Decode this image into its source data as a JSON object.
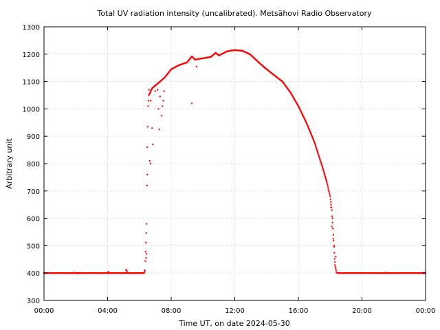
{
  "chart_data": {
    "type": "scatter",
    "title": "Total UV radiation intensity (uncalibrated). Metsähovi Radio Observatory",
    "xlabel": "Time UT, on date 2024-05-30",
    "ylabel": "Arbitrary unit",
    "xlim_hours": [
      0,
      24
    ],
    "ylim": [
      300,
      1300
    ],
    "grid": true,
    "x_ticks": [
      {
        "hour": 0,
        "label": "00:00"
      },
      {
        "hour": 4,
        "label": "04:00"
      },
      {
        "hour": 8,
        "label": "08:00"
      },
      {
        "hour": 12,
        "label": "12:00"
      },
      {
        "hour": 16,
        "label": "16:00"
      },
      {
        "hour": 20,
        "label": "20:00"
      },
      {
        "hour": 24,
        "label": "00:00"
      }
    ],
    "y_ticks": [
      {
        "value": 300,
        "label": "300"
      },
      {
        "value": 400,
        "label": "400"
      },
      {
        "value": 500,
        "label": "500"
      },
      {
        "value": 600,
        "label": "600"
      },
      {
        "value": 700,
        "label": "700"
      },
      {
        "value": 800,
        "label": "800"
      },
      {
        "value": 900,
        "label": "900"
      },
      {
        "value": 1000,
        "label": "1000"
      },
      {
        "value": 1100,
        "label": "1100"
      },
      {
        "value": 1200,
        "label": "1200"
      },
      {
        "value": 1300,
        "label": "1300"
      }
    ],
    "series": [
      {
        "color": "#ff0000",
        "curve_points": [
          [
            0.0,
            400
          ],
          [
            6.3,
            400
          ],
          [
            6.35,
            410
          ],
          [
            6.45,
            580
          ],
          [
            6.5,
            860
          ],
          [
            6.55,
            1010
          ],
          [
            6.6,
            1050
          ],
          [
            6.8,
            1075
          ],
          [
            7.2,
            1095
          ],
          [
            7.6,
            1115
          ],
          [
            8.0,
            1145
          ],
          [
            8.5,
            1160
          ],
          [
            9.0,
            1170
          ],
          [
            9.3,
            1192
          ],
          [
            9.5,
            1180
          ],
          [
            10.0,
            1185
          ],
          [
            10.5,
            1190
          ],
          [
            10.8,
            1205
          ],
          [
            11.0,
            1195
          ],
          [
            11.5,
            1210
          ],
          [
            12.0,
            1215
          ],
          [
            12.5,
            1212
          ],
          [
            13.0,
            1198
          ],
          [
            13.5,
            1170
          ],
          [
            14.0,
            1145
          ],
          [
            14.5,
            1122
          ],
          [
            15.0,
            1100
          ],
          [
            15.5,
            1060
          ],
          [
            16.0,
            1010
          ],
          [
            16.5,
            950
          ],
          [
            17.0,
            880
          ],
          [
            17.5,
            790
          ],
          [
            17.8,
            730
          ],
          [
            18.0,
            680
          ],
          [
            18.1,
            630
          ],
          [
            18.2,
            540
          ],
          [
            18.3,
            430
          ],
          [
            18.4,
            402
          ],
          [
            18.5,
            400
          ],
          [
            24.0,
            400
          ]
        ],
        "scattered_points": [
          [
            1.9,
            402
          ],
          [
            2.1,
            398
          ],
          [
            2.3,
            401
          ],
          [
            4.05,
            405
          ],
          [
            5.15,
            412
          ],
          [
            5.2,
            408
          ],
          [
            5.25,
            403
          ],
          [
            6.42,
            455
          ],
          [
            6.45,
            470
          ],
          [
            6.5,
            760
          ],
          [
            6.6,
            1070
          ],
          [
            6.65,
            810
          ],
          [
            6.7,
            800
          ],
          [
            6.72,
            1030
          ],
          [
            6.8,
            930
          ],
          [
            6.85,
            870
          ],
          [
            7.0,
            1065
          ],
          [
            7.15,
            1070
          ],
          [
            7.2,
            1000
          ],
          [
            7.25,
            925
          ],
          [
            7.3,
            1045
          ],
          [
            7.4,
            975
          ],
          [
            7.45,
            1010
          ],
          [
            7.5,
            1030
          ],
          [
            7.55,
            1065
          ],
          [
            9.3,
            1020
          ],
          [
            9.6,
            1155
          ],
          [
            18.05,
            640
          ],
          [
            18.1,
            570
          ],
          [
            18.15,
            600
          ],
          [
            18.2,
            525
          ],
          [
            18.25,
            500
          ],
          [
            18.3,
            440
          ],
          [
            18.35,
            460
          ],
          [
            21.0,
            399
          ],
          [
            21.5,
            402
          ],
          [
            21.7,
            401
          ],
          [
            23.9,
            402
          ]
        ]
      }
    ]
  }
}
